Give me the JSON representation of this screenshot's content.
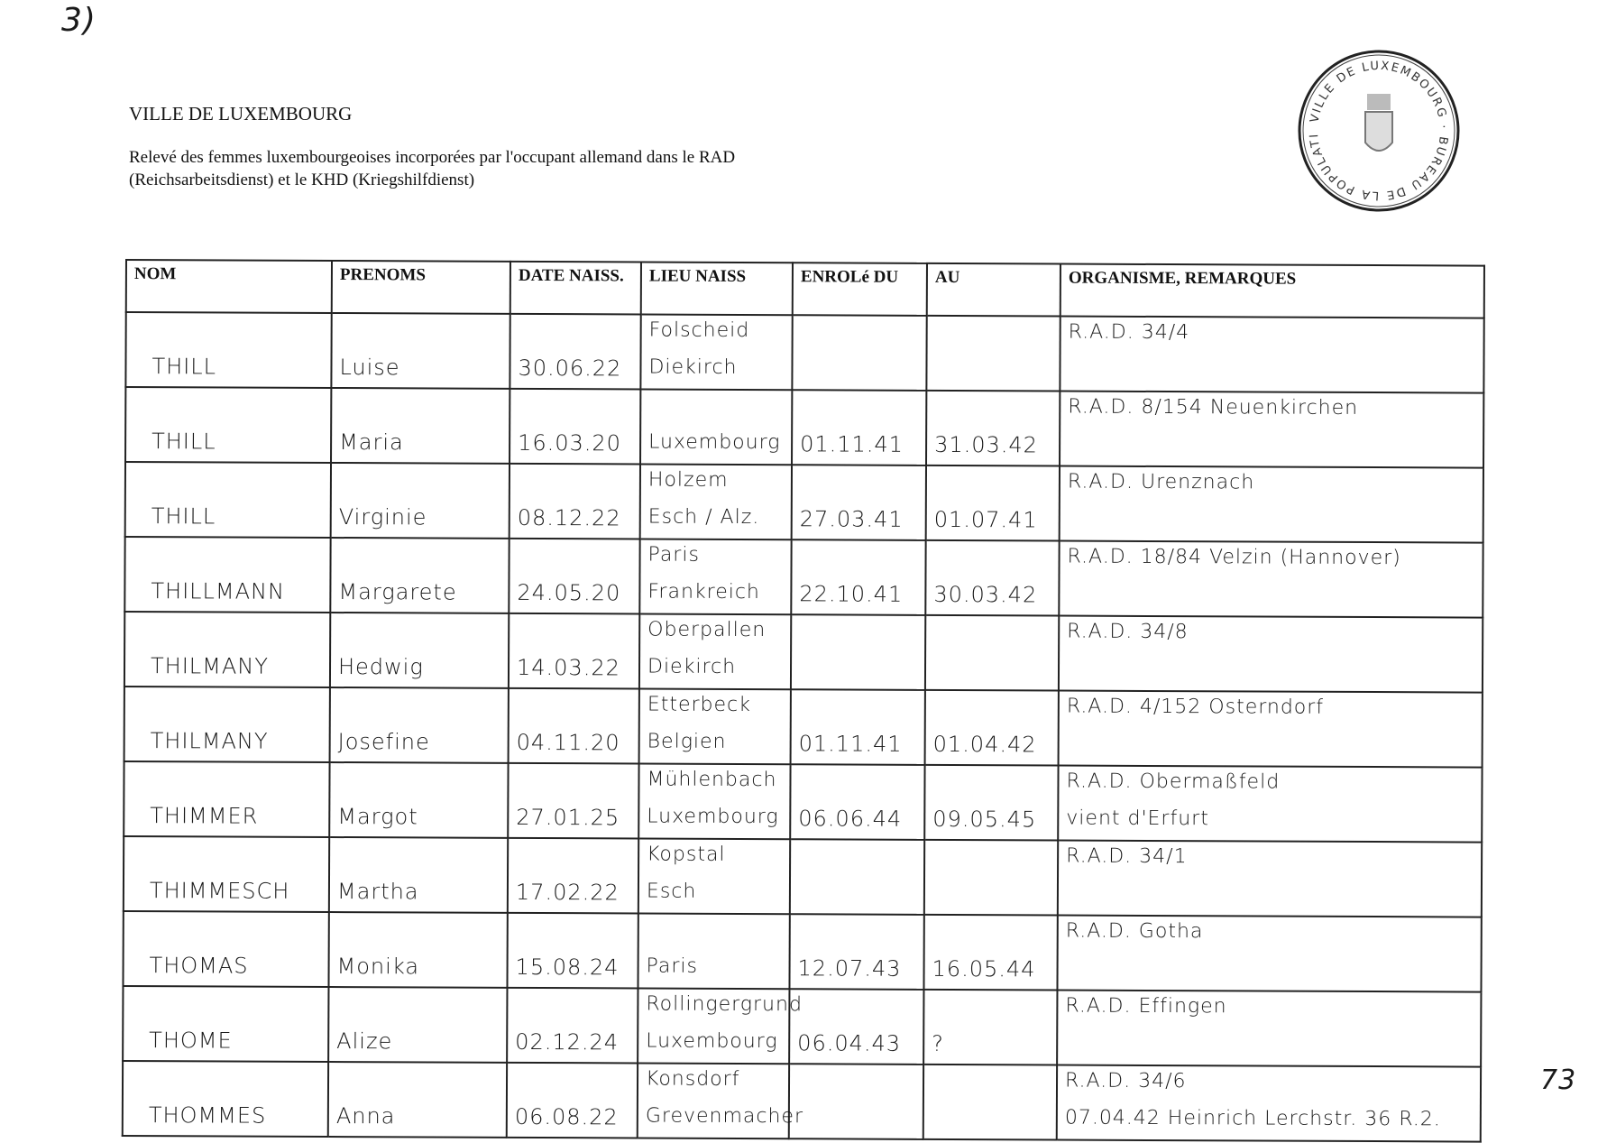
{
  "corner_mark": "3)",
  "header": {
    "title": "VILLE DE LUXEMBOURG",
    "subtitle": "Relevé des femmes luxembourgeoises incorporées par l'occupant allemand dans le RAD (Reichsarbeitsdienst) et le KHD (Kriegshilfdienst)"
  },
  "stamp": {
    "text": "VILLE DE LUXEMBOURG · BUREAU DE LA POPULATION"
  },
  "table": {
    "columns": [
      "NOM",
      "PRENOMS",
      "DATE NAISS.",
      "LIEU NAISS",
      "ENROLé DU",
      "AU",
      "ORGANISME, REMARQUES"
    ],
    "rows": [
      {
        "nom": "THILL",
        "prenoms": "Luise",
        "date": "30.06.22",
        "lieu": [
          "Folscheid",
          "Diekirch"
        ],
        "du": "",
        "au": "",
        "org": [
          "R.A.D. 34/4",
          ""
        ]
      },
      {
        "nom": "THILL",
        "prenoms": "Maria",
        "date": "16.03.20",
        "lieu": [
          "",
          "Luxembourg"
        ],
        "du": "01.11.41",
        "au": "31.03.42",
        "org": [
          "R.A.D. 8/154 Neuenkirchen",
          ""
        ]
      },
      {
        "nom": "THILL",
        "prenoms": "Virginie",
        "date": "08.12.22",
        "lieu": [
          "Holzem",
          "Esch / Alz."
        ],
        "du": "27.03.41",
        "au": "01.07.41",
        "org": [
          "R.A.D. Urenznach",
          ""
        ]
      },
      {
        "nom": "THILLMANN",
        "prenoms": "Margarete",
        "date": "24.05.20",
        "lieu": [
          "Paris",
          "Frankreich"
        ],
        "du": "22.10.41",
        "au": "30.03.42",
        "org": [
          "R.A.D. 18/84 Velzin (Hannover)",
          ""
        ]
      },
      {
        "nom": "THILMANY",
        "prenoms": "Hedwig",
        "date": "14.03.22",
        "lieu": [
          "Oberpallen",
          "Diekirch"
        ],
        "du": "",
        "au": "",
        "org": [
          "R.A.D. 34/8",
          ""
        ]
      },
      {
        "nom": "THILMANY",
        "prenoms": "Josefine",
        "date": "04.11.20",
        "lieu": [
          "Etterbeck",
          "Belgien"
        ],
        "du": "01.11.41",
        "au": "01.04.42",
        "org": [
          "R.A.D. 4/152 Osterndorf",
          ""
        ]
      },
      {
        "nom": "THIMMER",
        "prenoms": "Margot",
        "date": "27.01.25",
        "lieu": [
          "Mühlenbach",
          "Luxembourg"
        ],
        "du": "06.06.44",
        "au": "09.05.45",
        "org": [
          "R.A.D. Obermaßfeld",
          "vient d'Erfurt"
        ]
      },
      {
        "nom": "THIMMESCH",
        "prenoms": "Martha",
        "date": "17.02.22",
        "lieu": [
          "Kopstal",
          "Esch"
        ],
        "du": "",
        "au": "",
        "org": [
          "R.A.D. 34/1",
          ""
        ]
      },
      {
        "nom": "THOMAS",
        "prenoms": "Monika",
        "date": "15.08.24",
        "lieu": [
          "",
          "Paris"
        ],
        "du": "12.07.43",
        "au": "16.05.44",
        "org": [
          "R.A.D. Gotha",
          ""
        ]
      },
      {
        "nom": "THOME",
        "prenoms": "Alize",
        "date": "02.12.24",
        "lieu": [
          "Rollingergrund",
          "Luxembourg"
        ],
        "du": "06.04.43",
        "au": "?",
        "org": [
          "R.A.D. Effingen",
          ""
        ]
      },
      {
        "nom": "THOMMES",
        "prenoms": "Anna",
        "date": "06.08.22",
        "lieu": [
          "Konsdorf",
          "Grevenmacher"
        ],
        "du": "",
        "au": "",
        "org": [
          "R.A.D. 34/6",
          "07.04.42 Heinrich Lerchstr. 36 R.2."
        ]
      }
    ]
  },
  "page_number": "73"
}
